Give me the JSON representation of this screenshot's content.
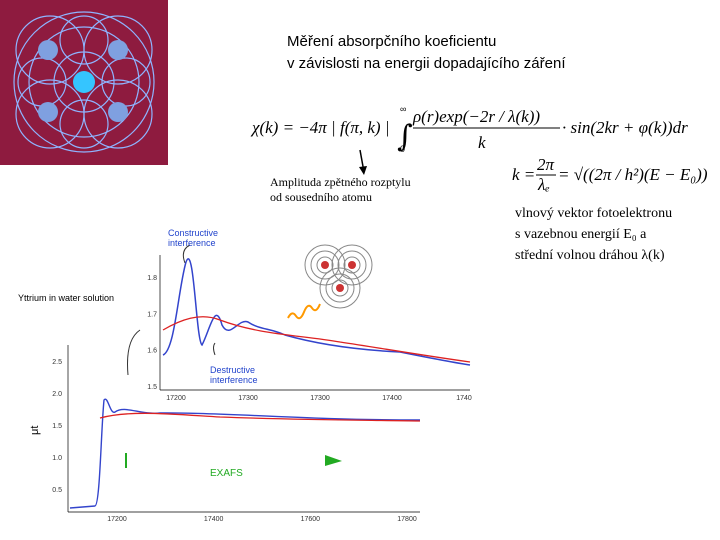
{
  "title": {
    "line1": "Měření absorpčního koeficientu",
    "line2": "v závislosti na energii dopadajícího záření"
  },
  "formula_chi": {
    "lhs": "χ(k) = −4π | f(π, k) |",
    "upper": "∞",
    "lower": "0",
    "numerator": "ρ(r)exp(−2r / λ(k))",
    "denominator": "k",
    "rhs": "· sin(2kr + φ(k))dr"
  },
  "formula_k": {
    "lhs": "k =",
    "numerator": "2π",
    "denominator": "λₑ",
    "rhs": "= √((2π / h²)(E − E₀))"
  },
  "annotation": {
    "line1": "Amplituda zpětného rozptylu",
    "line2": "od sousedního atomu"
  },
  "description": {
    "line1": "vlnový vektor fotoelektronu",
    "line2": "s vazebnou energií E₀ a",
    "line3": "střední volnou dráhou λ(k)"
  },
  "inset_plot": {
    "yticks": [
      "1.8",
      "1.7",
      "1.6",
      "1.5"
    ],
    "xticks": [
      "17200",
      "17300",
      "17300",
      "17400",
      "1740"
    ],
    "constructive": [
      "Constructive",
      "interference"
    ],
    "destructive": [
      "Destructive",
      "interference"
    ]
  },
  "main_plot": {
    "title": "Yttrium  in water solution",
    "ylabel": "μt",
    "yticks": [
      "2.5",
      "2.0",
      "1.5",
      "1.0",
      "0.5"
    ],
    "xticks": [
      "17200",
      "17400",
      "17600",
      "17800"
    ],
    "exafs": "EXAFS"
  }
}
